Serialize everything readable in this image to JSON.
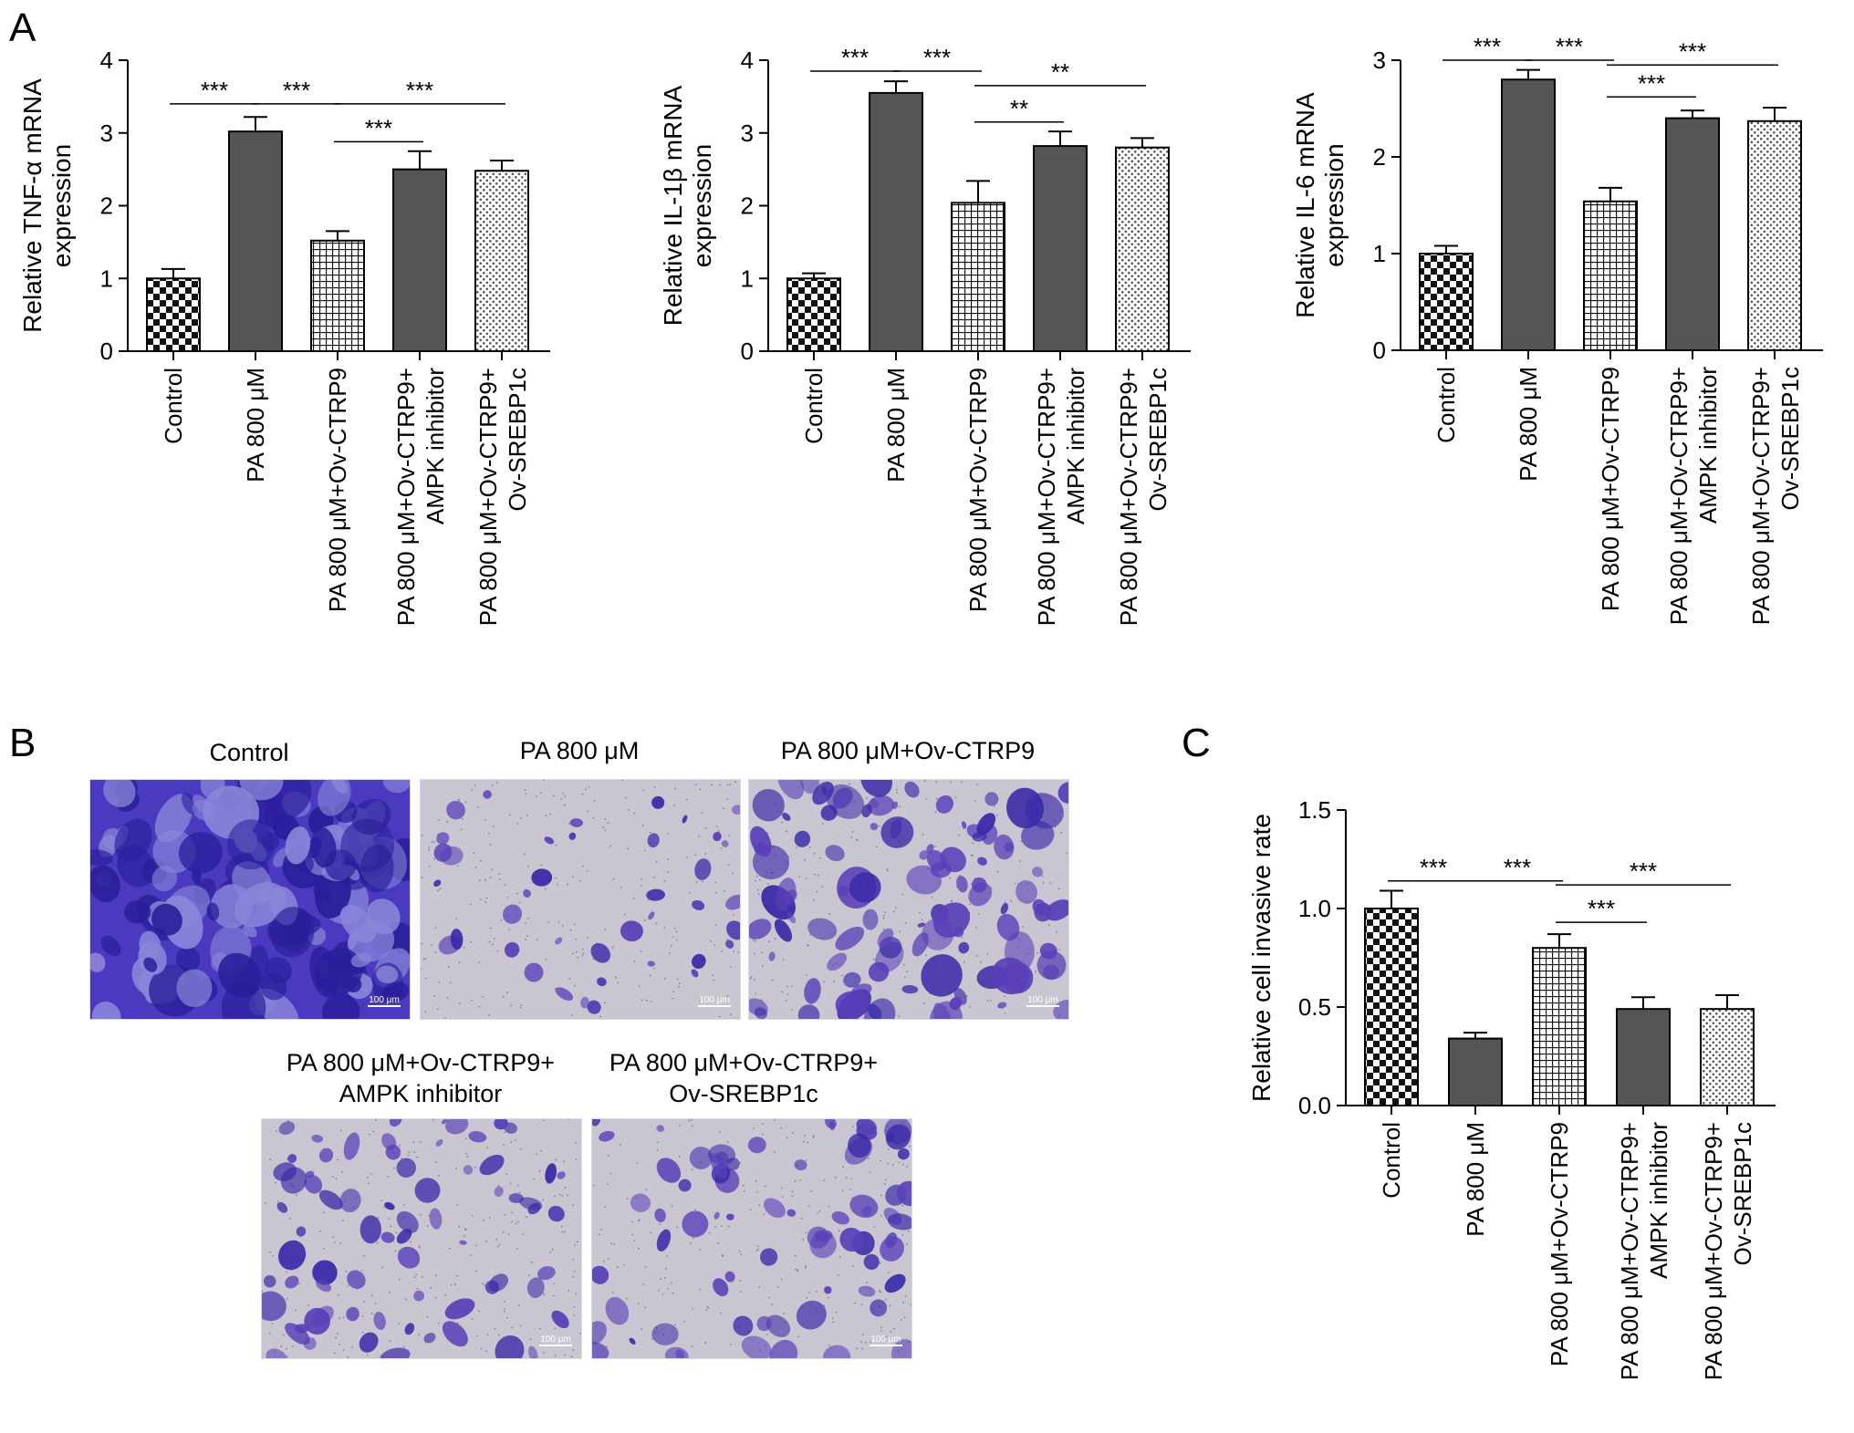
{
  "panels": {
    "a": "A",
    "b": "B",
    "c": "C"
  },
  "colors": {
    "bar_dark": "#555555",
    "bar_outline": "#000000",
    "stain_purple": "#5a3fb8",
    "stain_dense": "#3a2aa8",
    "membrane": "#c9c6d2"
  },
  "photos": {
    "scale_label": "100 μm",
    "items": [
      {
        "caption_lines": [
          "Control"
        ],
        "density": "dense"
      },
      {
        "caption_lines": [
          "PA 800 μM"
        ],
        "density": "sparse"
      },
      {
        "caption_lines": [
          "PA 800 μM+Ov-CTRP9"
        ],
        "density": "high"
      },
      {
        "caption_lines": [
          "PA 800 μM+Ov-CTRP9+",
          "AMPK inhibitor"
        ],
        "density": "medium"
      },
      {
        "caption_lines": [
          "PA 800 μM+Ov-CTRP9+",
          "Ov-SREBP1c"
        ],
        "density": "medium"
      }
    ]
  },
  "chart_data": [
    {
      "panel": "A",
      "type": "bar",
      "ylabel": [
        "Relative TNF-α mRNA",
        "expression"
      ],
      "ylim": [
        0,
        4
      ],
      "yticks": [
        "0",
        "1",
        "2",
        "3",
        "4"
      ],
      "categories": [
        [
          "Control"
        ],
        [
          "PA 800 μM"
        ],
        [
          "PA 800 μM+Ov-CTRP9"
        ],
        [
          "PA 800 μM+Ov-CTRP9+",
          "AMPK inhibitor"
        ],
        [
          "PA 800 μM+Ov-CTRP9+",
          "Ov-SREBP1c"
        ]
      ],
      "values": [
        1.0,
        3.02,
        1.52,
        2.5,
        2.48
      ],
      "errors": [
        0.13,
        0.2,
        0.13,
        0.25,
        0.14
      ],
      "patterns": [
        "checker",
        "solid",
        "grid",
        "solid",
        "dots"
      ],
      "significance": [
        {
          "from": 0,
          "to": 1,
          "label": "***",
          "y": 3.4
        },
        {
          "from": 1,
          "to": 2,
          "label": "***",
          "y": 3.4
        },
        {
          "from": 2,
          "to": 4,
          "label": "***",
          "y": 3.4
        },
        {
          "from": 2,
          "to": 3,
          "label": "***",
          "y": 2.88
        }
      ]
    },
    {
      "panel": "A",
      "type": "bar",
      "ylabel": [
        "Relative IL-1β mRNA",
        "expression"
      ],
      "ylim": [
        0,
        4
      ],
      "yticks": [
        "0",
        "1",
        "2",
        "3",
        "4"
      ],
      "categories": [
        [
          "Control"
        ],
        [
          "PA 800 μM"
        ],
        [
          "PA 800 μM+Ov-CTRP9"
        ],
        [
          "PA 800 μM+Ov-CTRP9+",
          "AMPK inhibitor"
        ],
        [
          "PA 800 μM+Ov-CTRP9+",
          "Ov-SREBP1c"
        ]
      ],
      "values": [
        1.0,
        3.55,
        2.04,
        2.82,
        2.8
      ],
      "errors": [
        0.07,
        0.16,
        0.3,
        0.2,
        0.13
      ],
      "patterns": [
        "checker",
        "solid",
        "grid",
        "solid",
        "dots"
      ],
      "significance": [
        {
          "from": 0,
          "to": 1,
          "label": "***",
          "y": 3.85
        },
        {
          "from": 1,
          "to": 2,
          "label": "***",
          "y": 3.85
        },
        {
          "from": 2,
          "to": 4,
          "label": "**",
          "y": 3.65
        },
        {
          "from": 2,
          "to": 3,
          "label": "**",
          "y": 3.15
        }
      ]
    },
    {
      "panel": "A",
      "type": "bar",
      "ylabel": [
        "Relative IL-6 mRNA",
        "expression"
      ],
      "ylim": [
        0,
        3
      ],
      "yticks": [
        "0",
        "1",
        "2",
        "3"
      ],
      "categories": [
        [
          "Control"
        ],
        [
          "PA 800 μM"
        ],
        [
          "PA 800 μM+Ov-CTRP9"
        ],
        [
          "PA 800 μM+Ov-CTRP9+",
          "AMPK inhibitor"
        ],
        [
          "PA 800 μM+Ov-CTRP9+",
          "Ov-SREBP1c"
        ]
      ],
      "values": [
        1.0,
        2.8,
        1.54,
        2.4,
        2.37
      ],
      "errors": [
        0.08,
        0.1,
        0.14,
        0.08,
        0.14
      ],
      "patterns": [
        "checker",
        "solid",
        "grid",
        "solid",
        "dots"
      ],
      "significance": [
        {
          "from": 0,
          "to": 1,
          "label": "***",
          "y": 3.0
        },
        {
          "from": 1,
          "to": 2,
          "label": "***",
          "y": 3.0
        },
        {
          "from": 2,
          "to": 4,
          "label": "***",
          "y": 2.95
        },
        {
          "from": 2,
          "to": 3,
          "label": "***",
          "y": 2.62
        }
      ]
    },
    {
      "panel": "C",
      "type": "bar",
      "ylabel": [
        "Relative cell invasive rate"
      ],
      "ylim": [
        0,
        1.5
      ],
      "yticks": [
        "0.0",
        "0.5",
        "1.0",
        "1.5"
      ],
      "categories": [
        [
          "Control"
        ],
        [
          "PA 800 μM"
        ],
        [
          "PA 800 μM+Ov-CTRP9"
        ],
        [
          "PA 800 μM+Ov-CTRP9+",
          "AMPK inhibitor"
        ],
        [
          "PA 800 μM+Ov-CTRP9+",
          "Ov-SREBP1c"
        ]
      ],
      "values": [
        1.0,
        0.34,
        0.8,
        0.49,
        0.49
      ],
      "errors": [
        0.09,
        0.03,
        0.07,
        0.06,
        0.07
      ],
      "patterns": [
        "checker",
        "solid",
        "grid",
        "solid",
        "dots"
      ],
      "significance": [
        {
          "from": 0,
          "to": 1,
          "label": "***",
          "y": 1.14
        },
        {
          "from": 1,
          "to": 2,
          "label": "***",
          "y": 1.14
        },
        {
          "from": 2,
          "to": 4,
          "label": "***",
          "y": 1.12
        },
        {
          "from": 2,
          "to": 3,
          "label": "***",
          "y": 0.93
        }
      ]
    }
  ]
}
